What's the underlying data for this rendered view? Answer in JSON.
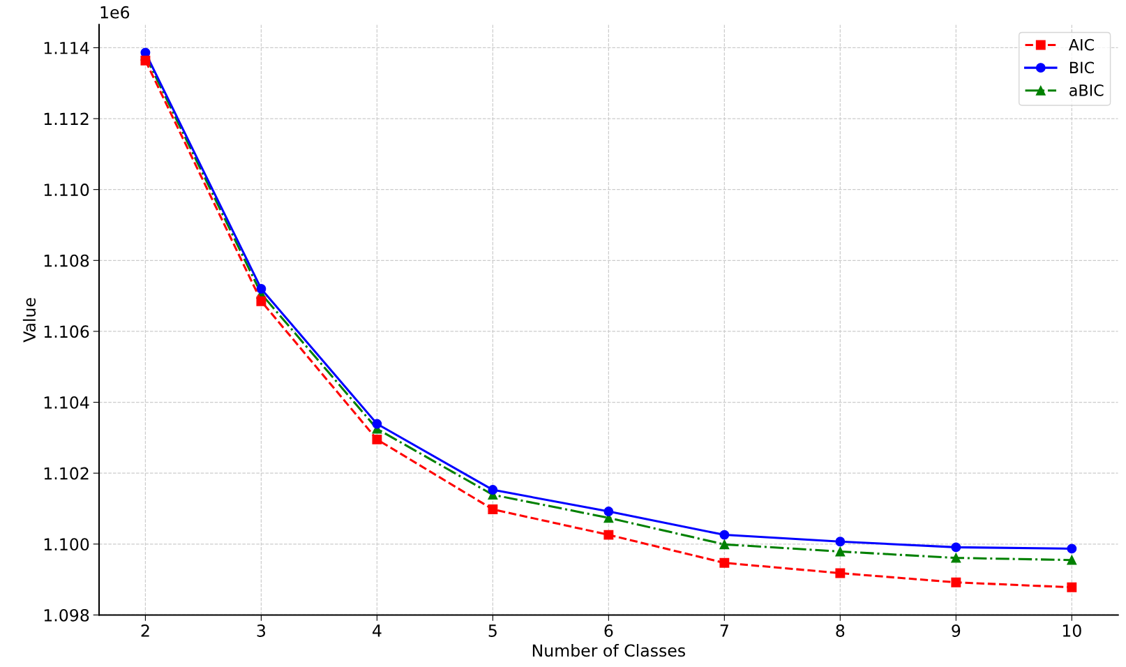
{
  "chart_data": {
    "type": "line",
    "xlabel": "Number of Classes",
    "ylabel": "Value",
    "x": [
      2,
      3,
      4,
      5,
      6,
      7,
      8,
      9,
      10
    ],
    "series": [
      {
        "name": "AIC",
        "color": "#ff0000",
        "marker": "square",
        "line_style": "dashed",
        "values": [
          1.11364,
          1.10685,
          1.10295,
          1.10098,
          1.10026,
          1.09947,
          1.09918,
          1.09892,
          1.09878
        ]
      },
      {
        "name": "BIC",
        "color": "#0000ff",
        "marker": "circle",
        "line_style": "solid",
        "values": [
          1.11386,
          1.1072,
          1.10339,
          1.10153,
          1.10092,
          1.10026,
          1.10007,
          1.09991,
          1.09987
        ]
      },
      {
        "name": "aBIC",
        "color": "#008000",
        "marker": "triangle",
        "line_style": "dashdot",
        "values": [
          1.11378,
          1.10706,
          1.10325,
          1.10139,
          1.10074,
          1.09999,
          1.09979,
          1.09961,
          1.09955
        ]
      }
    ],
    "xlim": [
      1.6,
      10.4
    ],
    "xticks": [
      2,
      3,
      4,
      5,
      6,
      7,
      8,
      9,
      10
    ],
    "ylim": [
      1.098,
      1.11465
    ],
    "yticks": [
      1.098,
      {
        "value": 1.1,
        "label": "1.100"
      },
      1.102,
      1.104,
      1.106,
      1.108,
      {
        "value": 1.11,
        "label": "1.110"
      },
      1.112,
      1.114
    ],
    "annotations": [
      "1e6"
    ],
    "grid": true,
    "legend": "top right"
  }
}
